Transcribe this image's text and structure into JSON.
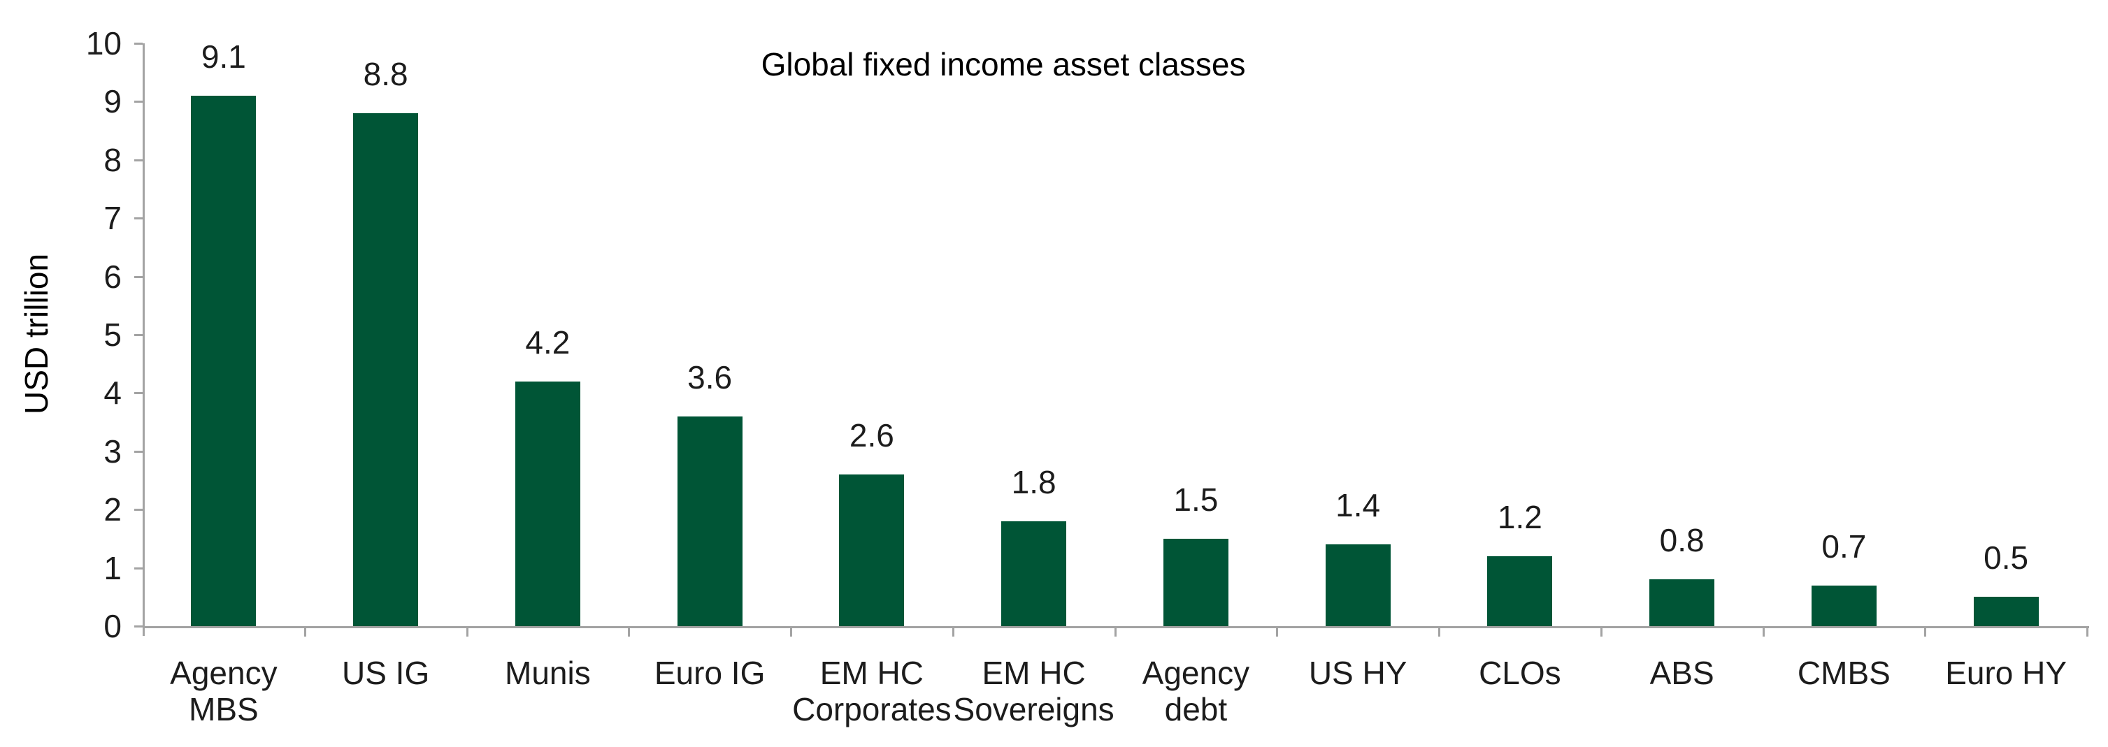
{
  "chart_data": {
    "type": "bar",
    "title": "Global fixed income asset classes",
    "ylabel": "USD trillion",
    "xlabel": "",
    "categories": [
      "Agency MBS",
      "US IG",
      "Munis",
      "Euro IG",
      "EM HC Corporates",
      "EM HC Sovereigns",
      "Agency debt",
      "US HY",
      "CLOs",
      "ABS",
      "CMBS",
      "Euro HY"
    ],
    "category_label_lines": [
      [
        "Agency",
        "MBS"
      ],
      [
        "US IG"
      ],
      [
        "Munis"
      ],
      [
        "Euro IG"
      ],
      [
        "EM HC",
        "Corporates"
      ],
      [
        "EM HC",
        "Sovereigns"
      ],
      [
        "Agency",
        "debt"
      ],
      [
        "US HY"
      ],
      [
        "CLOs"
      ],
      [
        "ABS"
      ],
      [
        "CMBS"
      ],
      [
        "Euro HY"
      ]
    ],
    "values": [
      9.1,
      8.8,
      4.2,
      3.6,
      2.6,
      1.8,
      1.5,
      1.4,
      1.2,
      0.8,
      0.7,
      0.5
    ],
    "value_labels": [
      "9.1",
      "8.8",
      "4.2",
      "3.6",
      "2.6",
      "1.8",
      "1.5",
      "1.4",
      "1.2",
      "0.8",
      "0.7",
      "0.5"
    ],
    "ylim": [
      0,
      10
    ],
    "y_ticks": [
      0,
      1,
      2,
      3,
      4,
      5,
      6,
      7,
      8,
      9,
      10
    ],
    "grid": false,
    "legend": "none",
    "colors": {
      "bar": "#005536",
      "axis": "#a3a3a3",
      "text": "#1c1c1c"
    }
  }
}
